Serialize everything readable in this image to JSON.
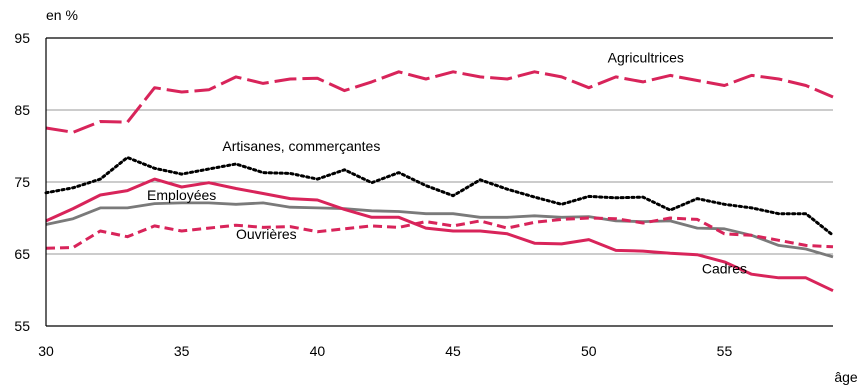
{
  "chart_data": {
    "type": "line",
    "title": "",
    "unit_label": "en %",
    "xlabel": "âge",
    "ylabel": "",
    "xlim": [
      30,
      59
    ],
    "ylim": [
      55,
      95
    ],
    "x_ticks": [
      30,
      35,
      40,
      45,
      50,
      55
    ],
    "x_tick_labels": [
      "30",
      "35",
      "40",
      "45",
      "50",
      "55"
    ],
    "y_ticks": [
      55,
      65,
      75,
      85,
      95
    ],
    "y_tick_labels": [
      "55",
      "65",
      "75",
      "85",
      "95"
    ],
    "grid": "horizontal",
    "legend": "none (labels placed on chart)",
    "x": [
      30,
      31,
      32,
      33,
      34,
      35,
      36,
      37,
      38,
      39,
      40,
      41,
      42,
      43,
      44,
      45,
      46,
      47,
      48,
      49,
      50,
      51,
      52,
      53,
      54,
      55,
      56,
      57,
      58,
      59
    ],
    "series": [
      {
        "name": "Agricultrices",
        "color": "#d8245a",
        "dash": "long-dash",
        "values": [
          82.5,
          81.9,
          83.4,
          83.3,
          88.1,
          87.5,
          87.8,
          89.6,
          88.7,
          89.3,
          89.4,
          87.7,
          88.9,
          90.3,
          89.3,
          90.3,
          89.6,
          89.3,
          90.3,
          89.6,
          88.1,
          89.6,
          88.9,
          89.8,
          89.1,
          88.4,
          89.8,
          89.3,
          88.4,
          86.8
        ]
      },
      {
        "name": "Artisanes, commerçantes",
        "color": "#000000",
        "dash": "dotted",
        "values": [
          73.5,
          74.2,
          75.4,
          78.4,
          76.9,
          76.1,
          76.8,
          77.5,
          76.3,
          76.2,
          75.4,
          76.7,
          74.9,
          76.3,
          74.5,
          73.1,
          75.3,
          74.0,
          72.9,
          71.9,
          73.0,
          72.8,
          72.9,
          71.1,
          72.7,
          71.9,
          71.4,
          70.6,
          70.6,
          67.6
        ]
      },
      {
        "name": "Employées",
        "color": "#7a7a7a",
        "dash": "solid",
        "values": [
          69.1,
          69.9,
          71.4,
          71.4,
          72.0,
          72.1,
          72.1,
          71.9,
          72.1,
          71.5,
          71.4,
          71.3,
          71.0,
          70.9,
          70.6,
          70.6,
          70.1,
          70.1,
          70.3,
          70.1,
          70.2,
          69.6,
          69.5,
          69.6,
          68.6,
          68.5,
          67.6,
          66.2,
          65.7,
          64.6
        ]
      },
      {
        "name": "Ouvrières",
        "color": "#d8245a",
        "dash": "short-dash",
        "values": [
          65.8,
          65.9,
          68.2,
          67.4,
          68.9,
          68.2,
          68.6,
          69.0,
          68.7,
          68.8,
          68.1,
          68.5,
          68.9,
          68.7,
          69.5,
          68.9,
          69.6,
          68.6,
          69.4,
          69.8,
          70.0,
          69.9,
          69.3,
          70.0,
          69.8,
          67.8,
          67.6,
          66.9,
          66.2,
          66.0
        ]
      },
      {
        "name": "Cadres",
        "color": "#d8245a",
        "dash": "solid",
        "values": [
          69.6,
          71.3,
          73.2,
          73.8,
          75.4,
          74.3,
          74.9,
          74.1,
          73.4,
          72.7,
          72.5,
          71.2,
          70.1,
          70.1,
          68.6,
          68.2,
          68.2,
          67.8,
          66.5,
          66.4,
          67.0,
          65.5,
          65.4,
          65.1,
          64.9,
          63.9,
          62.2,
          61.7,
          61.7,
          59.9
        ]
      }
    ]
  }
}
